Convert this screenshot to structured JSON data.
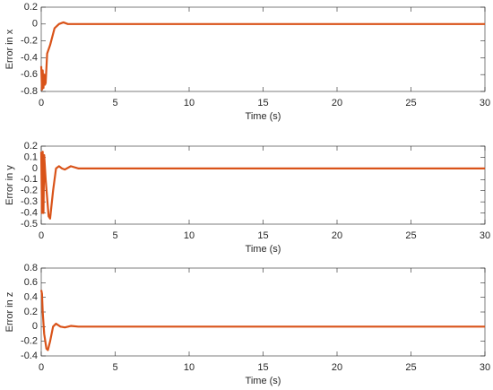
{
  "chart_data": [
    {
      "type": "line",
      "xlabel": "Time (s)",
      "ylabel": "Error in x",
      "xlim": [
        0,
        30
      ],
      "xticks": [
        0,
        5,
        10,
        15,
        20,
        25,
        30
      ],
      "ylim": [
        -0.8,
        0.2
      ],
      "yticks": [
        -0.8,
        -0.6,
        -0.4,
        -0.2,
        0,
        0.2
      ],
      "x": [
        0,
        0.05,
        0.1,
        0.15,
        0.2,
        0.25,
        0.3,
        0.4,
        0.6,
        0.9,
        1.2,
        1.5,
        1.8,
        2.2,
        30
      ],
      "series": [
        {
          "color": "#d95319",
          "values": [
            -0.5,
            -0.78,
            -0.55,
            -0.76,
            -0.6,
            -0.72,
            -0.7,
            -0.35,
            -0.25,
            -0.05,
            0,
            0.02,
            0,
            0,
            0
          ]
        }
      ]
    },
    {
      "type": "line",
      "xlabel": "Time (s)",
      "ylabel": "Error in y",
      "xlim": [
        0,
        30
      ],
      "xticks": [
        0,
        5,
        10,
        15,
        20,
        25,
        30
      ],
      "ylim": [
        -0.5,
        0.2
      ],
      "yticks": [
        -0.5,
        -0.4,
        -0.3,
        -0.2,
        -0.1,
        0,
        0.1,
        0.2
      ],
      "x": [
        0,
        0.05,
        0.1,
        0.15,
        0.2,
        0.3,
        0.5,
        0.6,
        0.8,
        1.0,
        1.2,
        1.4,
        1.6,
        2.0,
        2.5,
        3.0,
        30
      ],
      "series": [
        {
          "color": "#d95319",
          "values": [
            0.15,
            -0.4,
            0.15,
            -0.4,
            0.12,
            -0.1,
            -0.43,
            -0.45,
            -0.2,
            0,
            0.02,
            0,
            -0.01,
            0.02,
            0,
            0,
            0
          ]
        }
      ]
    },
    {
      "type": "line",
      "xlabel": "Time (s)",
      "ylabel": "Error in z",
      "xlim": [
        0,
        30
      ],
      "xticks": [
        0,
        5,
        10,
        15,
        20,
        25,
        30
      ],
      "ylim": [
        -0.4,
        0.8
      ],
      "yticks": [
        -0.4,
        -0.2,
        0,
        0.2,
        0.4,
        0.6,
        0.8
      ],
      "x": [
        0,
        0.05,
        0.1,
        0.2,
        0.35,
        0.45,
        0.6,
        0.8,
        1.0,
        1.3,
        1.6,
        2.0,
        2.5,
        30
      ],
      "series": [
        {
          "color": "#d95319",
          "values": [
            0.5,
            0.45,
            0.2,
            -0.1,
            -0.3,
            -0.32,
            -0.2,
            0,
            0.04,
            0,
            -0.01,
            0.01,
            0,
            0
          ]
        }
      ]
    }
  ]
}
